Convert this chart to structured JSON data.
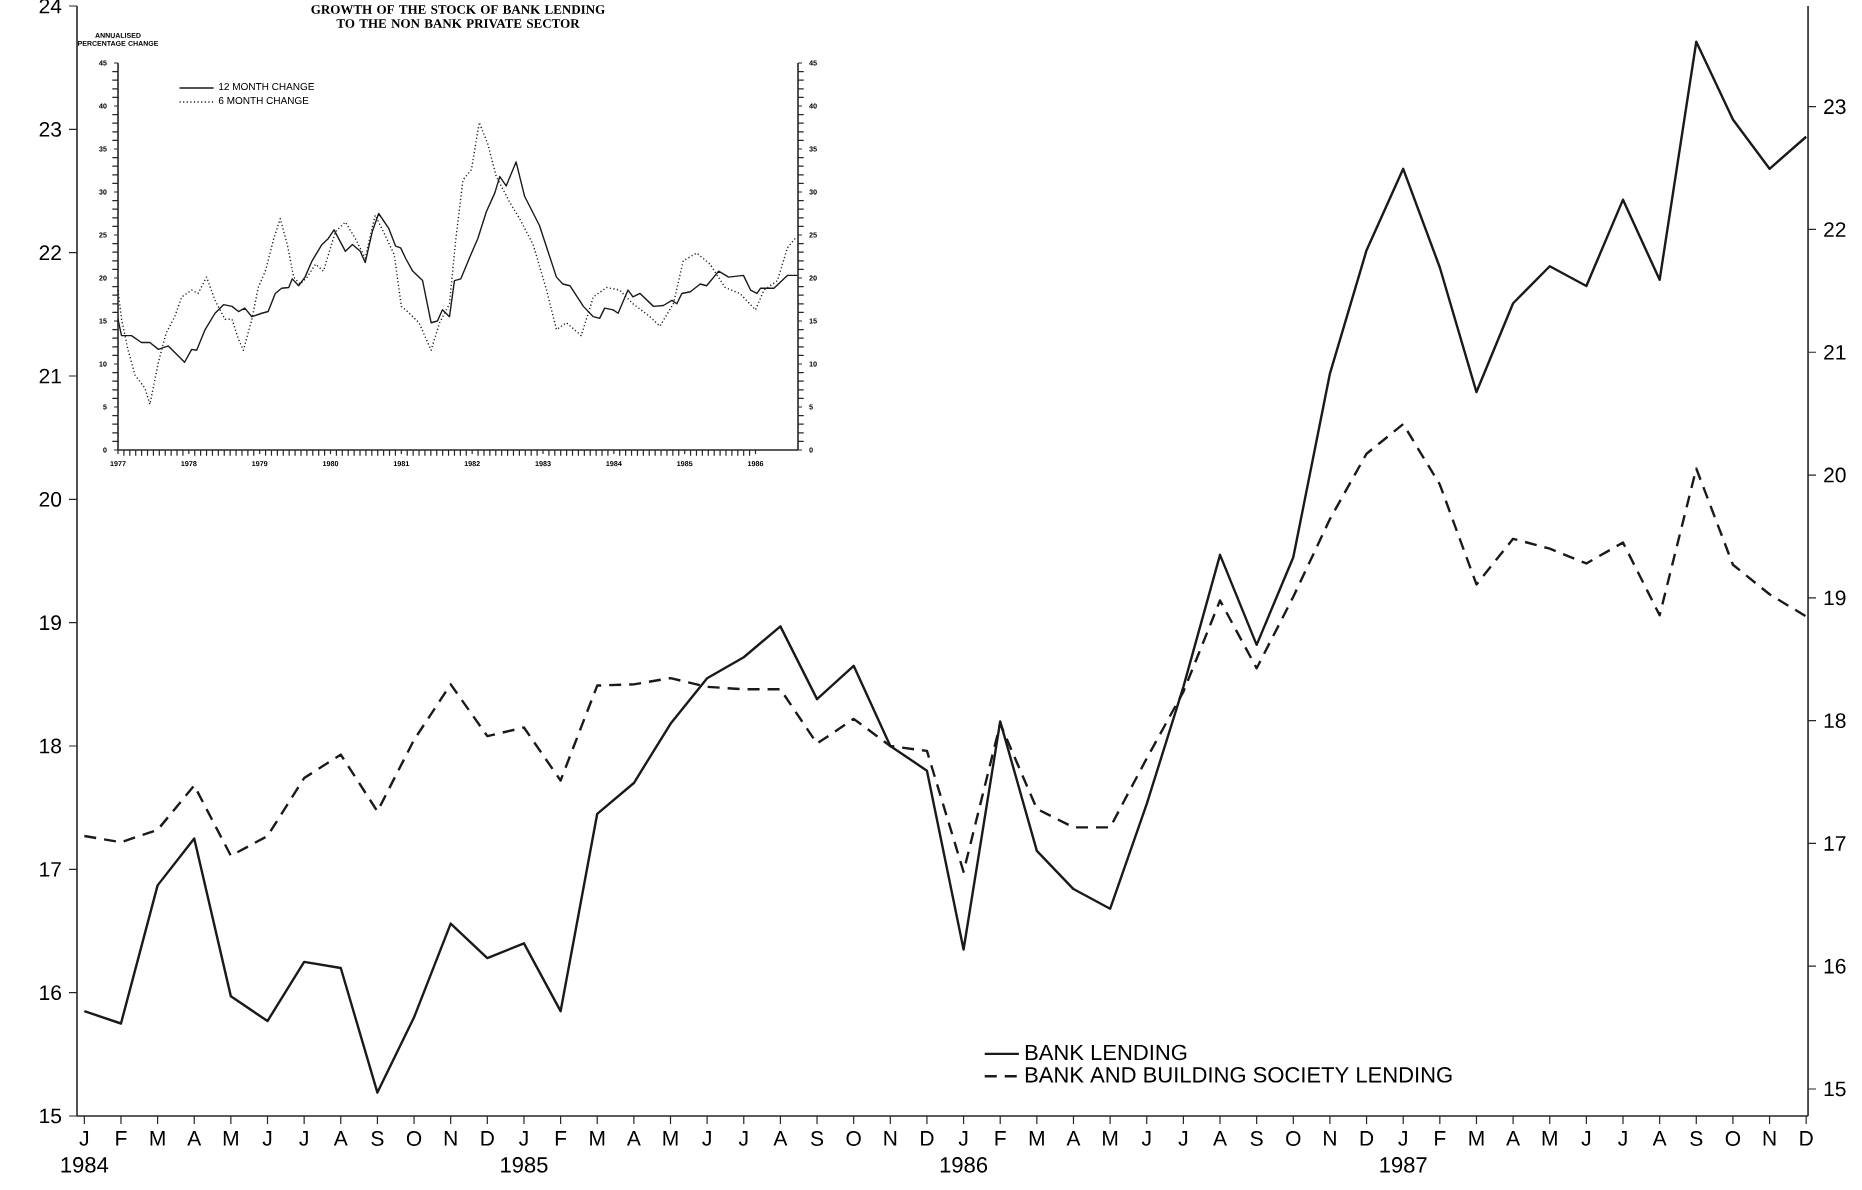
{
  "chart_data": [
    {
      "type": "line",
      "categories": [
        "J",
        "F",
        "M",
        "A",
        "M",
        "J",
        "J",
        "A",
        "S",
        "O",
        "N",
        "D",
        "J",
        "F",
        "M",
        "A",
        "M",
        "J",
        "J",
        "A",
        "S",
        "O",
        "N",
        "D",
        "J",
        "F",
        "M",
        "A",
        "M",
        "J",
        "J",
        "A",
        "S",
        "O",
        "N",
        "D",
        "J",
        "F",
        "M",
        "A",
        "M",
        "J",
        "J",
        "A",
        "S",
        "O",
        "N",
        "D"
      ],
      "series": [
        {
          "name": "BANK LENDING",
          "color": "#1a1a1a",
          "line_style": "solid",
          "values": [
            15.85,
            15.75,
            16.87,
            17.25,
            15.97,
            15.77,
            16.25,
            16.2,
            15.19,
            15.8,
            16.56,
            16.28,
            16.4,
            15.85,
            17.45,
            17.7,
            18.18,
            18.55,
            18.72,
            18.97,
            18.38,
            18.65,
            18.0,
            17.8,
            16.35,
            18.2,
            17.15,
            16.84,
            16.68,
            17.53,
            18.48,
            19.55,
            18.82,
            19.53,
            21.02,
            22.02,
            22.68,
            21.88,
            20.87,
            21.59,
            21.89,
            21.73,
            22.43,
            21.78,
            23.71,
            23.08,
            22.68,
            22.94
          ]
        },
        {
          "name": "BANK AND BUILDING SOCIETY LENDING",
          "color": "#1a1a1a",
          "line_style": "dashed",
          "values": [
            17.27,
            17.22,
            17.32,
            17.68,
            17.11,
            17.27,
            17.74,
            17.93,
            17.47,
            18.05,
            18.5,
            18.08,
            18.15,
            17.72,
            18.49,
            18.5,
            18.55,
            18.48,
            18.46,
            18.46,
            18.02,
            18.22,
            18.0,
            17.96,
            16.98,
            18.18,
            17.49,
            17.34,
            17.34,
            17.9,
            18.44,
            19.18,
            18.63,
            19.21,
            19.84,
            20.37,
            20.61,
            20.12,
            19.31,
            19.68,
            19.6,
            19.48,
            19.65,
            19.06,
            20.25,
            19.47,
            19.23,
            19.05
          ]
        }
      ],
      "ylim": [
        15,
        24
      ],
      "yticks": [
        15,
        16,
        17,
        18,
        19,
        20,
        21,
        22,
        23,
        24
      ],
      "y2lim": [
        14.78,
        23.82
      ],
      "y2ticks": [
        15,
        16,
        17,
        18,
        19,
        20,
        21,
        22,
        23
      ],
      "legend": "bottom right",
      "annotations": [
        "1984",
        "1985",
        "1986",
        "1987"
      ]
    },
    {
      "type": "line",
      "title": "GROWTH OF THE STOCK OF BANK LENDING TO THE NON BANK PRIVATE SECTOR",
      "ylabel": "ANNUALISED PERCENTAGE CHANGE",
      "series": [
        {
          "name": "12 MONTH CHANGE",
          "color": "#1a1a1a",
          "line_style": "solid",
          "x": [
            1977.0,
            1977.05,
            1977.19,
            1977.33,
            1977.45,
            1977.57,
            1977.71,
            1977.94,
            1978.04,
            1978.11,
            1978.23,
            1978.37,
            1978.49,
            1978.61,
            1978.7,
            1978.79,
            1978.89,
            1979.03,
            1979.12,
            1979.22,
            1979.31,
            1979.41,
            1979.46,
            1979.55,
            1979.64,
            1979.74,
            1979.88,
            1979.97,
            1980.05,
            1980.21,
            1980.31,
            1980.42,
            1980.49,
            1980.59,
            1980.68,
            1980.82,
            1980.92,
            1980.99,
            1981.06,
            1981.16,
            1981.3,
            1981.42,
            1981.51,
            1981.58,
            1981.68,
            1981.75,
            1981.84,
            1981.96,
            1982.08,
            1982.2,
            1982.32,
            1982.39,
            1982.48,
            1982.62,
            1982.74,
            1982.95,
            1983.19,
            1983.28,
            1983.38,
            1983.57,
            1983.71,
            1983.8,
            1983.87,
            1983.99,
            1984.06,
            1984.2,
            1984.27,
            1984.37,
            1984.56,
            1984.7,
            1984.82,
            1984.89,
            1984.96,
            1985.08,
            1985.22,
            1985.31,
            1985.48,
            1985.62,
            1985.83,
            1985.93,
            1986.02,
            1986.07,
            1986.26,
            1986.45,
            1986.59
          ],
          "values": [
            15.2,
            13.3,
            13.3,
            12.5,
            12.5,
            11.7,
            12.1,
            10.2,
            11.7,
            11.6,
            14.0,
            15.9,
            16.9,
            16.7,
            16.1,
            16.5,
            15.5,
            15.9,
            16.1,
            18.2,
            18.8,
            18.9,
            19.9,
            19.1,
            20.1,
            22.0,
            23.9,
            24.6,
            25.6,
            23.1,
            23.9,
            23.1,
            21.8,
            25.4,
            27.5,
            25.8,
            23.7,
            23.5,
            22.3,
            20.8,
            19.7,
            14.8,
            15.0,
            16.3,
            15.5,
            19.7,
            19.9,
            22.3,
            24.6,
            27.7,
            29.9,
            31.8,
            30.7,
            33.5,
            29.5,
            26.1,
            20.1,
            19.3,
            19.1,
            16.7,
            15.5,
            15.3,
            16.5,
            16.3,
            15.9,
            18.6,
            17.8,
            18.2,
            16.7,
            16.8,
            17.4,
            17.0,
            18.2,
            18.4,
            19.3,
            19.1,
            20.8,
            20.1,
            20.3,
            18.6,
            18.2,
            18.8,
            18.8,
            20.3,
            20.3
          ]
        },
        {
          "name": "6 MONTH CHANGE",
          "color": "#1a1a1a",
          "line_style": "dotted",
          "x": [
            1977.0,
            1977.05,
            1977.14,
            1977.24,
            1977.38,
            1977.45,
            1977.57,
            1977.68,
            1977.8,
            1977.9,
            1978.04,
            1978.13,
            1978.25,
            1978.37,
            1978.51,
            1978.61,
            1978.7,
            1978.77,
            1978.89,
            1978.98,
            1979.08,
            1979.2,
            1979.29,
            1979.39,
            1979.48,
            1979.57,
            1979.67,
            1979.79,
            1979.9,
            1980.07,
            1980.21,
            1980.35,
            1980.49,
            1980.63,
            1980.77,
            1980.9,
            1981.0,
            1981.06,
            1981.25,
            1981.42,
            1981.54,
            1981.68,
            1981.77,
            1981.87,
            1981.99,
            1982.1,
            1982.22,
            1982.34,
            1982.53,
            1982.67,
            1982.86,
            1983.05,
            1983.19,
            1983.33,
            1983.54,
            1983.71,
            1983.9,
            1984.08,
            1984.27,
            1984.51,
            1984.65,
            1984.84,
            1984.98,
            1985.17,
            1985.36,
            1985.57,
            1985.78,
            1986.0,
            1986.12,
            1986.31,
            1986.45,
            1986.56
          ],
          "values": [
            18.6,
            15.2,
            11.7,
            8.7,
            7.2,
            5.3,
            10.2,
            13.6,
            15.5,
            17.8,
            18.6,
            18.2,
            20.1,
            17.4,
            15.2,
            15.2,
            12.9,
            11.6,
            15.2,
            18.9,
            20.8,
            24.6,
            26.9,
            23.9,
            20.1,
            19.3,
            20.1,
            21.6,
            20.8,
            25.4,
            26.5,
            24.6,
            22.3,
            27.3,
            25.0,
            22.7,
            16.7,
            16.3,
            14.8,
            11.6,
            14.8,
            17.0,
            24.6,
            31.4,
            32.6,
            38.1,
            35.6,
            31.8,
            28.8,
            26.9,
            23.9,
            18.6,
            14.0,
            14.8,
            13.3,
            17.8,
            18.9,
            18.6,
            17.0,
            15.5,
            14.4,
            17.0,
            22.0,
            22.9,
            21.6,
            18.9,
            18.2,
            16.3,
            18.6,
            19.7,
            23.5,
            24.6
          ]
        }
      ],
      "xlim": [
        1977,
        1986.6
      ],
      "xticks": [
        1977,
        1978,
        1979,
        1980,
        1981,
        1982,
        1983,
        1984,
        1985,
        1986
      ],
      "ylim": [
        0,
        45
      ],
      "yticks": [
        0,
        5,
        10,
        15,
        20,
        25,
        30,
        35,
        40,
        45
      ],
      "y2lim": [
        0,
        45
      ],
      "y2ticks": [
        0,
        5,
        10,
        15,
        20,
        25,
        30,
        35,
        40,
        45
      ],
      "legend": "top left"
    }
  ]
}
